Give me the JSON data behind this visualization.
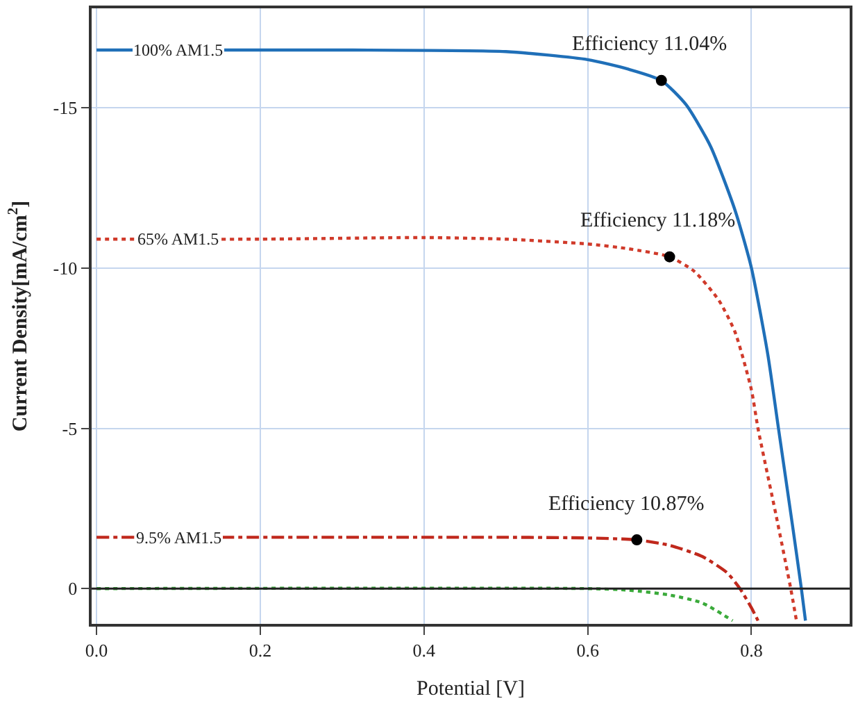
{
  "chart_data": {
    "type": "line",
    "xlabel": "Potential [V]",
    "ylabel": "Current Density[mA/cm$^{2}$]",
    "xlim": [
      -0.006,
      0.92
    ],
    "ylim": [
      1.1,
      -18.1
    ],
    "xticks": [
      {
        "value": 0,
        "label": "0.0"
      },
      0.2,
      0.4,
      0.6,
      0.8
    ],
    "yticks": [
      -15,
      -10,
      -5,
      0
    ],
    "grid": true,
    "legend": false,
    "marker": "none",
    "series": [
      {
        "name": "100% AM1.5",
        "color": "#1f6fb8",
        "line_style": "solid",
        "x": [
          0,
          0.3,
          0.5,
          0.6,
          0.65,
          0.69,
          0.72,
          0.75,
          0.78,
          0.8,
          0.82,
          0.833,
          0.85,
          0.861,
          0.866
        ],
        "values": [
          -16.8,
          -16.8,
          -16.75,
          -16.5,
          -16.2,
          -15.85,
          -15.1,
          -13.8,
          -11.8,
          -10,
          -7.3,
          -5,
          -2,
          0,
          1.0
        ]
      },
      {
        "name": "65% AM1.5",
        "color": "#d03a2a",
        "line_style": "dotted",
        "x": [
          0,
          0.2,
          0.4,
          0.5,
          0.6,
          0.65,
          0.7,
          0.73,
          0.76,
          0.78,
          0.8,
          0.808,
          0.83,
          0.848,
          0.855
        ],
        "values": [
          -10.9,
          -10.9,
          -10.95,
          -10.9,
          -10.75,
          -10.6,
          -10.35,
          -9.9,
          -9.0,
          -8.0,
          -6.2,
          -5,
          -2.3,
          0,
          1.0
        ]
      },
      {
        "name": "9.5% AM1.5",
        "color": "#c0281c",
        "line_style": "dashdot",
        "x": [
          0,
          0.3,
          0.5,
          0.6,
          0.66,
          0.7,
          0.74,
          0.77,
          0.786,
          0.8,
          0.808
        ],
        "values": [
          -1.6,
          -1.6,
          -1.6,
          -1.58,
          -1.52,
          -1.35,
          -1.0,
          -0.5,
          0,
          0.6,
          1.0
        ]
      },
      {
        "color": "#3aaa3a",
        "line_style": "dotted",
        "x": [
          0,
          0.6,
          0.65,
          0.7,
          0.74,
          0.777
        ],
        "values": [
          0,
          0,
          0.05,
          0.2,
          0.45,
          1.0
        ]
      },
      {
        "type": "scatter",
        "marker": "circle",
        "color": "#000000",
        "x": [
          0.69,
          0.7,
          0.66
        ],
        "values": [
          -15.85,
          -10.35,
          -1.52
        ]
      }
    ],
    "ref_lines": [
      {
        "axis": "y",
        "value": 0,
        "color": "#222222"
      }
    ],
    "annotations": [
      {
        "text": "Efficiency 11.04%",
        "x": 0.69,
        "y": -15.85
      },
      {
        "text": "Efficiency 11.18%",
        "x": 0.7,
        "y": -10.35
      },
      {
        "text": "Efficiency 10.87%",
        "x": 0.66,
        "y": -1.52
      }
    ]
  }
}
